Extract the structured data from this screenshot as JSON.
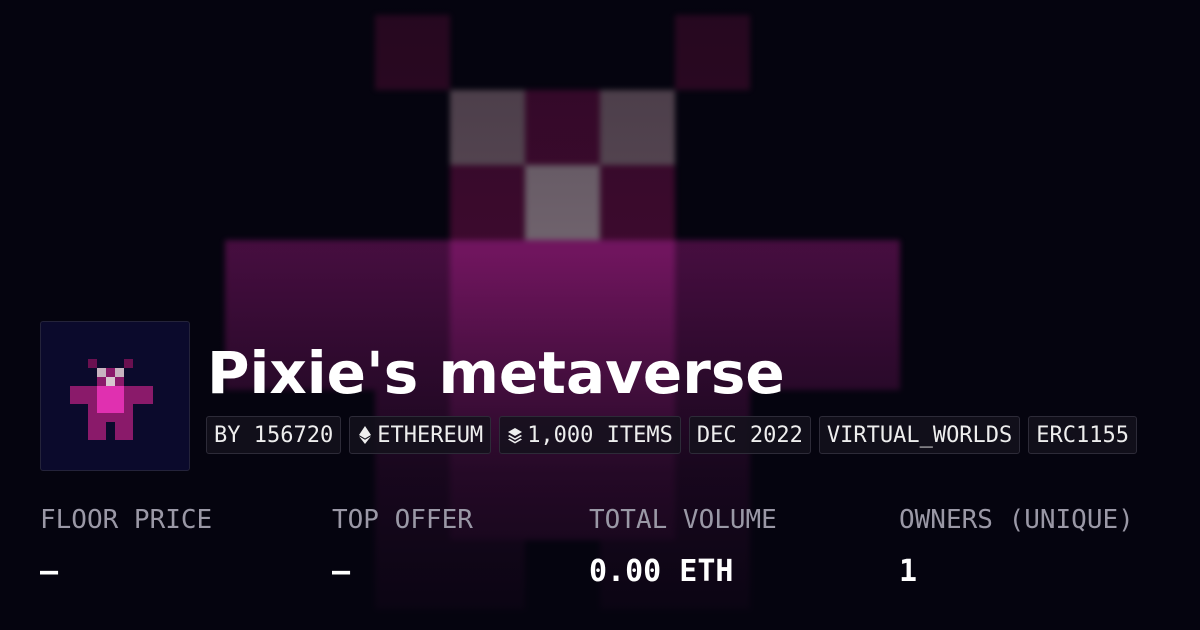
{
  "header": {
    "title": "Pixie's metaverse"
  },
  "tags": [
    {
      "text": "BY 156720"
    },
    {
      "icon": "eth",
      "text": "ETHEREUM"
    },
    {
      "icon": "layers",
      "text": "1,000 ITEMS"
    },
    {
      "text": "DEC 2022"
    },
    {
      "text": "VIRTUAL_WORLDS"
    },
    {
      "text": "ERC1155"
    }
  ],
  "stats": [
    {
      "label": "FLOOR PRICE",
      "value": "—"
    },
    {
      "label": "TOP OFFER",
      "value": "—"
    },
    {
      "label": "TOTAL VOLUME",
      "value": "0.00 ETH"
    },
    {
      "label": "OWNERS (UNIQUE)",
      "value": "1"
    }
  ]
}
